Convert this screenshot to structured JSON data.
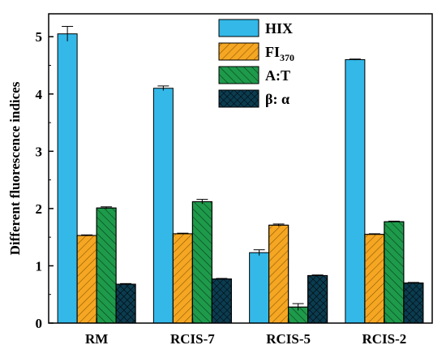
{
  "chart_data": {
    "type": "bar",
    "title": "",
    "xlabel": "",
    "ylabel": "Different fluorescence  indices",
    "categories": [
      "RM",
      "RCIS-7",
      "RCIS-5",
      "RCIS-2"
    ],
    "ylim": [
      0,
      5.4
    ],
    "yticks": [
      0,
      1,
      2,
      3,
      4,
      5
    ],
    "grid": false,
    "legend_position": "top-right",
    "series": [
      {
        "name": "HIX",
        "legend_main": "HIX",
        "legend_sub": "",
        "color": "#33b8e8",
        "pattern": "none",
        "values": [
          5.05,
          4.1,
          1.23,
          4.6
        ],
        "errors": [
          0.13,
          0.04,
          0.05,
          0.01
        ]
      },
      {
        "name": "FI370",
        "legend_main": "FI",
        "legend_sub": "370",
        "color": "#f5a623",
        "pattern": "hatch-right",
        "values": [
          1.53,
          1.56,
          1.71,
          1.55
        ],
        "errors": [
          0.01,
          0.01,
          0.02,
          0.01
        ]
      },
      {
        "name": "A:T",
        "legend_main": "A:T",
        "legend_sub": "",
        "color": "#1e9a4b",
        "pattern": "hatch-left",
        "values": [
          2.01,
          2.12,
          0.28,
          1.77
        ],
        "errors": [
          0.02,
          0.04,
          0.06,
          0.01
        ]
      },
      {
        "name": "β: α",
        "legend_main": "β: α",
        "legend_sub": "",
        "color": "#0b3c50",
        "pattern": "crosshatch",
        "values": [
          0.68,
          0.77,
          0.83,
          0.7
        ],
        "errors": [
          0.01,
          0.01,
          0.01,
          0.01
        ]
      }
    ]
  }
}
